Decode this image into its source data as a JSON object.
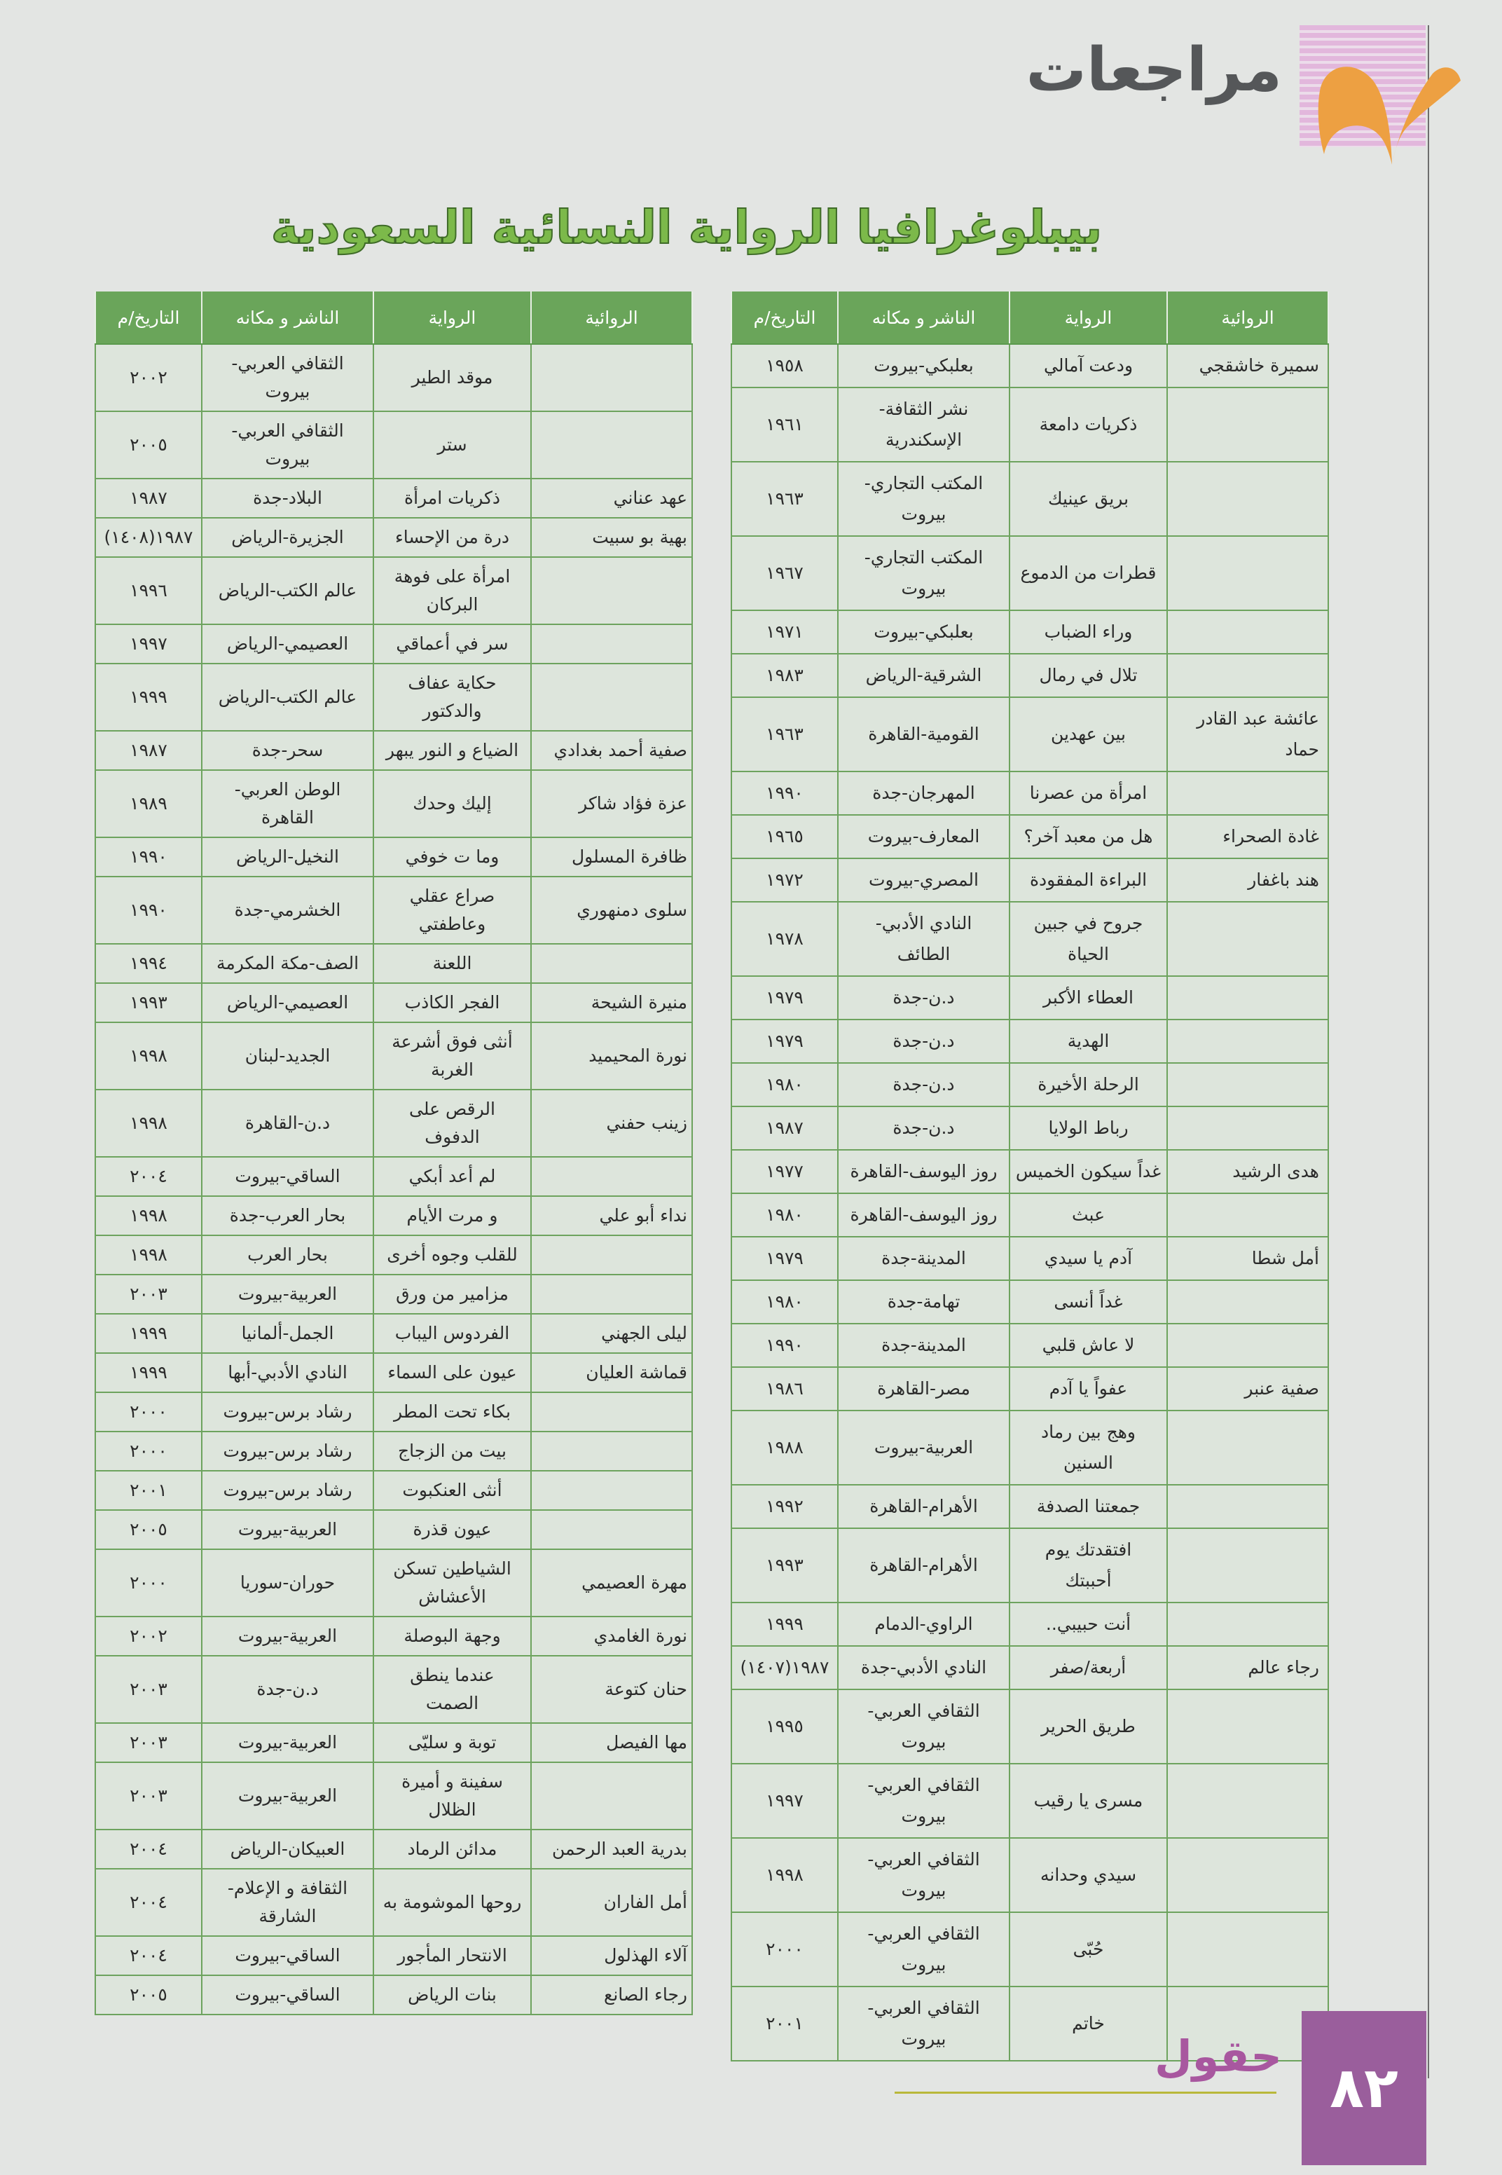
{
  "header": {
    "section_title": "مراجعات",
    "page_title": "بيبلوغرافيا الرواية النسائية السعودية"
  },
  "colors": {
    "table_header": "#6aa55a",
    "border": "#6da35e",
    "title_green": "#7cb94a",
    "accent_purple": "#9a5e9c",
    "accent_orange": "#eda042",
    "logo_pink": "#e2b7dc"
  },
  "icons": {
    "section_logo": "orange-ribbon-logo",
    "magazine_logo": "huqool-logo"
  },
  "columns": {
    "author": "الروائية",
    "novel": "الرواية",
    "publisher": "الناشر و مكانه",
    "date": "التاريخ/م"
  },
  "tables": [
    {
      "rows": [
        {
          "author": "سميرة خاشقجي",
          "novel": "ودعت آمالي",
          "publisher": "بعلبكي-بيروت",
          "date": "١٩٥٨"
        },
        {
          "author": "",
          "novel": "ذكريات دامعة",
          "publisher": "نشر الثقافة-\nالإسكندرية",
          "date": "١٩٦١"
        },
        {
          "author": "",
          "novel": "بريق عينيك",
          "publisher": "المكتب التجاري-\nبيروت",
          "date": "١٩٦٣"
        },
        {
          "author": "",
          "novel": "قطرات من الدموع",
          "publisher": "المكتب التجاري-\nبيروت",
          "date": "١٩٦٧"
        },
        {
          "author": "",
          "novel": "وراء الضباب",
          "publisher": "بعلبكي-بيروت",
          "date": "١٩٧١"
        },
        {
          "author": "",
          "novel": "تلال في رمال",
          "publisher": "الشرقية-الرياض",
          "date": "١٩٨٣"
        },
        {
          "author": "عائشة عبد القادر\nحماد",
          "novel": "بين عهدين",
          "publisher": "القومية-القاهرة",
          "date": "١٩٦٣"
        },
        {
          "author": "",
          "novel": "امرأة من عصرنا",
          "publisher": "المهرجان-جدة",
          "date": "١٩٩٠"
        },
        {
          "author": "غادة الصحراء",
          "novel": "هل من معبد آخر؟",
          "publisher": "المعارف-بيروت",
          "date": "١٩٦٥"
        },
        {
          "author": "هند باغفار",
          "novel": "البراءة المفقودة",
          "publisher": "المصري-بيروت",
          "date": "١٩٧٢"
        },
        {
          "author": "",
          "novel": "جروح في جبين\nالحياة",
          "publisher": "النادي الأدبي-\nالطائف",
          "date": "١٩٧٨"
        },
        {
          "author": "",
          "novel": "العطاء الأكبر",
          "publisher": "د.ن-جدة",
          "date": "١٩٧٩"
        },
        {
          "author": "",
          "novel": "الهدية",
          "publisher": "د.ن-جدة",
          "date": "١٩٧٩"
        },
        {
          "author": "",
          "novel": "الرحلة الأخيرة",
          "publisher": "د.ن-جدة",
          "date": "١٩٨٠"
        },
        {
          "author": "",
          "novel": "رباط الولايا",
          "publisher": "د.ن-جدة",
          "date": "١٩٨٧"
        },
        {
          "author": "هدى الرشيد",
          "novel": "غداً سيكون الخميس",
          "publisher": "روز اليوسف-القاهرة",
          "date": "١٩٧٧"
        },
        {
          "author": "",
          "novel": "عبث",
          "publisher": "روز اليوسف-القاهرة",
          "date": "١٩٨٠"
        },
        {
          "author": "أمل شطا",
          "novel": "آدم يا سيدي",
          "publisher": "المدينة-جدة",
          "date": "١٩٧٩"
        },
        {
          "author": "",
          "novel": "غداً أنسى",
          "publisher": "تهامة-جدة",
          "date": "١٩٨٠"
        },
        {
          "author": "",
          "novel": "لا عاش قلبي",
          "publisher": "المدينة-جدة",
          "date": "١٩٩٠"
        },
        {
          "author": "صفية عنبر",
          "novel": "عفواً يا آدم",
          "publisher": "مصر-القاهرة",
          "date": "١٩٨٦"
        },
        {
          "author": "",
          "novel": "وهج بين رماد\nالسنين",
          "publisher": "العربية-بيروت",
          "date": "١٩٨٨"
        },
        {
          "author": "",
          "novel": "جمعتنا الصدفة",
          "publisher": "الأهرام-القاهرة",
          "date": "١٩٩٢"
        },
        {
          "author": "",
          "novel": "افتقدتك يوم\nأحببتك",
          "publisher": "الأهرام-القاهرة",
          "date": "١٩٩٣"
        },
        {
          "author": "",
          "novel": "أنت حبيبي..",
          "publisher": "الراوي-الدمام",
          "date": "١٩٩٩"
        },
        {
          "author": "رجاء عالم",
          "novel": "أربعة/صفر",
          "publisher": "النادي الأدبي-جدة",
          "date": "١٩٨٧(١٤٠٧)"
        },
        {
          "author": "",
          "novel": "طريق الحرير",
          "publisher": "الثقافي العربي-\nبيروت",
          "date": "١٩٩٥"
        },
        {
          "author": "",
          "novel": "مسرى يا رقيب",
          "publisher": "الثقافي العربي-\nبيروت",
          "date": "١٩٩٧"
        },
        {
          "author": "",
          "novel": "سيدي وحدانه",
          "publisher": "الثقافي العربي-\nبيروت",
          "date": "١٩٩٨"
        },
        {
          "author": "",
          "novel": "حُبّى",
          "publisher": "الثقافي العربي-\nبيروت",
          "date": "٢٠٠٠"
        },
        {
          "author": "",
          "novel": "خاتم",
          "publisher": "الثقافي العربي-\nبيروت",
          "date": "٢٠٠١"
        }
      ]
    },
    {
      "rows": [
        {
          "author": "",
          "novel": "موقد الطير",
          "publisher": "الثقافي العربي-\nبيروت",
          "date": "٢٠٠٢"
        },
        {
          "author": "",
          "novel": "ستر",
          "publisher": "الثقافي العربي-\nبيروت",
          "date": "٢٠٠٥"
        },
        {
          "author": "عهد عناني",
          "novel": "ذكريات امرأة",
          "publisher": "البلاد-جدة",
          "date": "١٩٨٧"
        },
        {
          "author": "بهية بو سبيت",
          "novel": "درة من الإحساء",
          "publisher": "الجزيرة-الرياض",
          "date": "١٩٨٧(١٤٠٨)"
        },
        {
          "author": "",
          "novel": "امرأة على فوهة\nالبركان",
          "publisher": "عالم الكتب-الرياض",
          "date": "١٩٩٦"
        },
        {
          "author": "",
          "novel": "سر في أعماقي",
          "publisher": "العصيمي-الرياض",
          "date": "١٩٩٧"
        },
        {
          "author": "",
          "novel": "حكاية عفاف\nوالدكتور",
          "publisher": "عالم الكتب-الرياض",
          "date": "١٩٩٩"
        },
        {
          "author": "صفية أحمد بغدادي",
          "novel": "الضياع و النور يبهر",
          "publisher": "سحر-جدة",
          "date": "١٩٨٧"
        },
        {
          "author": "عزة فؤاد شاكر",
          "novel": "إليك وحدك",
          "publisher": "الوطن العربي-\nالقاهرة",
          "date": "١٩٨٩"
        },
        {
          "author": "ظافرة المسلول",
          "novel": "وما ت خوفي",
          "publisher": "النخيل-الرياض",
          "date": "١٩٩٠"
        },
        {
          "author": "سلوى دمنهوري",
          "novel": "صراع عقلي\nوعاطفتي",
          "publisher": "الخشرمي-جدة",
          "date": "١٩٩٠"
        },
        {
          "author": "",
          "novel": "اللعنة",
          "publisher": "الصف-مكة المكرمة",
          "date": "١٩٩٤"
        },
        {
          "author": "منيرة الشيحة",
          "novel": "الفجر الكاذب",
          "publisher": "العصيمي-الرياض",
          "date": "١٩٩٣"
        },
        {
          "author": "نورة المحيميد",
          "novel": "أنثى فوق أشرعة\nالغربة",
          "publisher": "الجديد-لبنان",
          "date": "١٩٩٨"
        },
        {
          "author": "زينب حفني",
          "novel": "الرقص على\nالدفوف",
          "publisher": "د.ن-القاهرة",
          "date": "١٩٩٨"
        },
        {
          "author": "",
          "novel": "لم أعد أبكي",
          "publisher": "الساقي-بيروت",
          "date": "٢٠٠٤"
        },
        {
          "author": "نداء أبو علي",
          "novel": "و مرت الأيام",
          "publisher": "بحار العرب-جدة",
          "date": "١٩٩٨"
        },
        {
          "author": "",
          "novel": "للقلب وجوه أخرى",
          "publisher": "بحار العرب",
          "date": "١٩٩٨"
        },
        {
          "author": "",
          "novel": "مزامير من ورق",
          "publisher": "العربية-بيروت",
          "date": "٢٠٠٣"
        },
        {
          "author": "ليلى الجهني",
          "novel": "الفردوس اليباب",
          "publisher": "الجمل-ألمانيا",
          "date": "١٩٩٩"
        },
        {
          "author": "قماشة العليان",
          "novel": "عيون على السماء",
          "publisher": "النادي الأدبي-أبها",
          "date": "١٩٩٩"
        },
        {
          "author": "",
          "novel": "بكاء تحت المطر",
          "publisher": "رشاد برس-بيروت",
          "date": "٢٠٠٠"
        },
        {
          "author": "",
          "novel": "بيت من الزجاج",
          "publisher": "رشاد برس-بيروت",
          "date": "٢٠٠٠"
        },
        {
          "author": "",
          "novel": "أنثى العنكبوت",
          "publisher": "رشاد برس-بيروت",
          "date": "٢٠٠١"
        },
        {
          "author": "",
          "novel": "عيون قذرة",
          "publisher": "العربية-بيروت",
          "date": "٢٠٠٥"
        },
        {
          "author": "مهرة العصيمي",
          "novel": "الشياطين تسكن\nالأعشاش",
          "publisher": "حوران-سوريا",
          "date": "٢٠٠٠"
        },
        {
          "author": "نورة الغامدي",
          "novel": "وجهة البوصلة",
          "publisher": "العربية-بيروت",
          "date": "٢٠٠٢"
        },
        {
          "author": "حنان كتوعة",
          "novel": "عندما ينطق\nالصمت",
          "publisher": "د.ن-جدة",
          "date": "٢٠٠٣"
        },
        {
          "author": "مها الفيصل",
          "novel": "توبة و سليّى",
          "publisher": "العربية-بيروت",
          "date": "٢٠٠٣"
        },
        {
          "author": "",
          "novel": "سفينة و أميرة\nالظلال",
          "publisher": "العربية-بيروت",
          "date": "٢٠٠٣"
        },
        {
          "author": "بدرية العبد الرحمن",
          "novel": "مدائن الرماد",
          "publisher": "العبيكان-الرياض",
          "date": "٢٠٠٤"
        },
        {
          "author": "أمل الفاران",
          "novel": "روحها الموشومة به",
          "publisher": "الثقافة و الإعلام-\nالشارقة",
          "date": "٢٠٠٤"
        },
        {
          "author": "آلاء الهذلول",
          "novel": "الانتحار المأجور",
          "publisher": "الساقي-بيروت",
          "date": "٢٠٠٤"
        },
        {
          "author": "رجاء الصانع",
          "novel": "بنات الرياض",
          "publisher": "الساقي-بيروت",
          "date": "٢٠٠٥"
        }
      ]
    }
  ],
  "footer": {
    "magazine_name": "حقول",
    "page_number": "٨٢"
  }
}
